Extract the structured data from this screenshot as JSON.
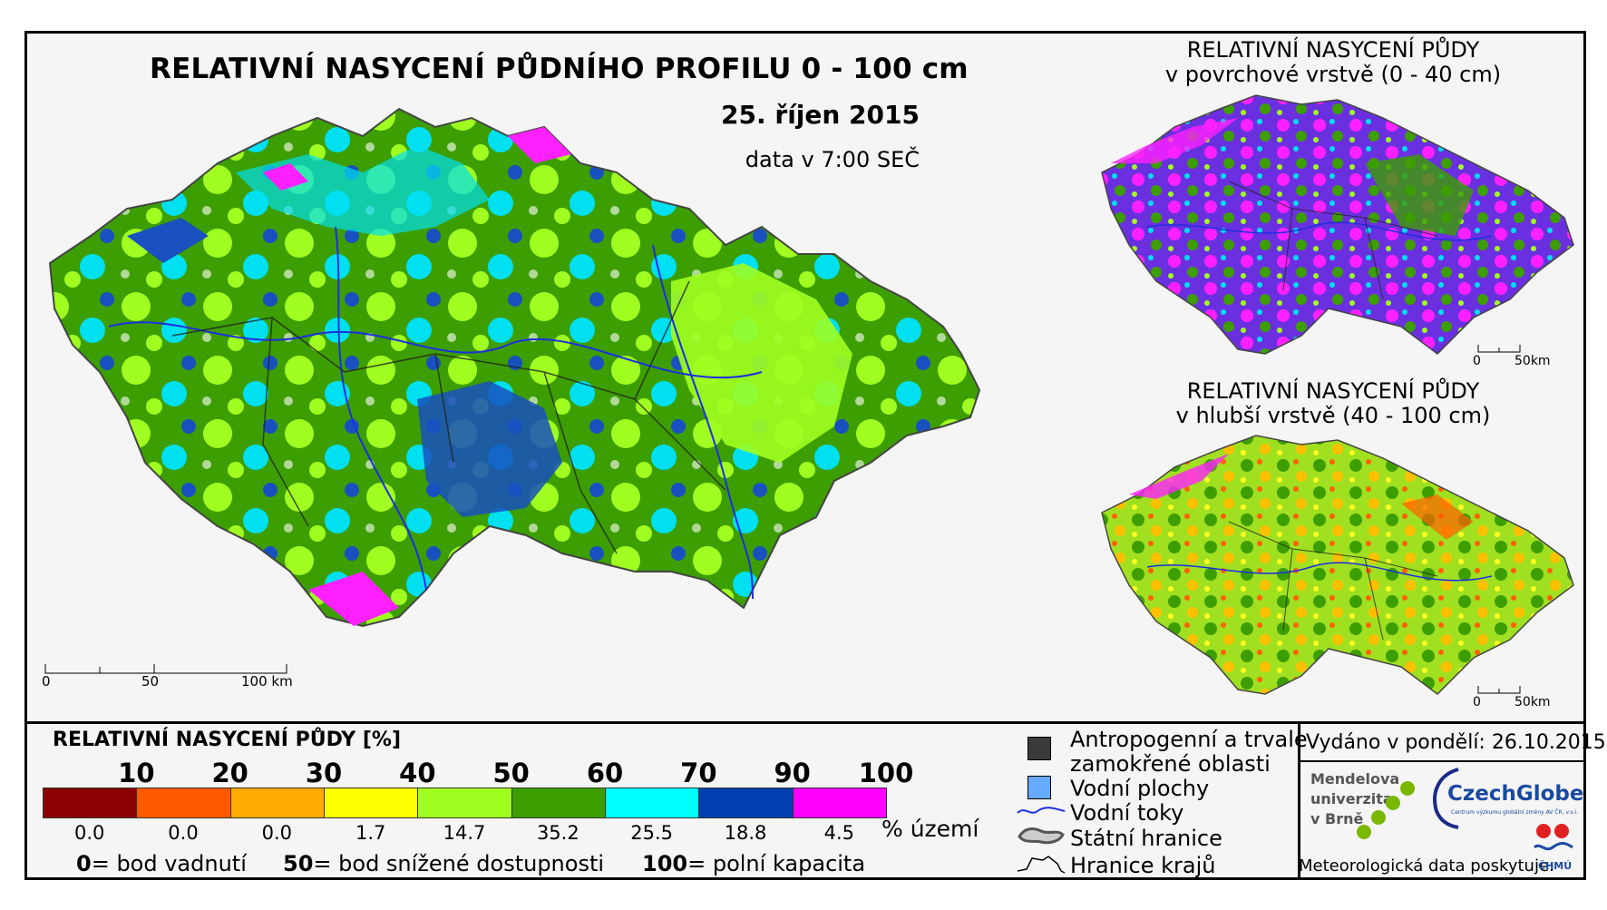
{
  "main_map": {
    "title": "RELATIVNÍ NASYCENÍ PŮDNÍHO PROFILU 0 - 100 cm",
    "date": "25. říjen 2015",
    "time": "data v 7:00 SEČ",
    "scale": [
      "0",
      "50",
      "100 km"
    ]
  },
  "top_inset": {
    "title_line1": "RELATIVNÍ NASYCENÍ PŮDY",
    "title_line2": "v povrchové vrstvě (0 - 40 cm)",
    "scale": [
      "0",
      "50km"
    ]
  },
  "bottom_inset": {
    "title_line1": "RELATIVNÍ NASYCENÍ PŮDY",
    "title_line2": "v hlubší vrstvě (40 - 100 cm)",
    "scale": [
      "0",
      "50km"
    ]
  },
  "legend": {
    "title": "RELATIVNÍ NASYCENÍ PŮDY [%]",
    "ticks": [
      "10",
      "20",
      "30",
      "40",
      "50",
      "60",
      "70",
      "90",
      "100"
    ],
    "percents": [
      "0.0",
      "0.0",
      "0.0",
      "1.7",
      "14.7",
      "35.2",
      "25.5",
      "18.8",
      "4.5"
    ],
    "percent_unit": "% území",
    "colors": [
      "#8b0000",
      "#ff5a00",
      "#ffaa00",
      "#ffff00",
      "#a0ff20",
      "#3c9e00",
      "#00ffff",
      "#0040b0",
      "#ff00ff"
    ],
    "definitions": [
      {
        "num": "0",
        "text": "= bod vadnutí"
      },
      {
        "num": "50",
        "text": "= bod snížené dostupnosti"
      },
      {
        "num": "100",
        "text": "= polní kapacita"
      }
    ]
  },
  "symbol_legend": {
    "items": [
      "Antropogenní a trvale",
      "zamokřené oblasti",
      "Vodní plochy",
      "Vodní toky",
      "Státní hranice",
      "Hranice krajů"
    ]
  },
  "issue": {
    "issued": "Vydáno v pondělí: 26.10.2015",
    "mendel": [
      "Mendelova",
      "univerzita",
      "v Brně"
    ],
    "czechglobe": "CzechGlobe",
    "czechglobe_sub": "Centrum výzkumu globální změny AV ČR, v.v.i.",
    "provider": "Meteorologická data poskytuje:",
    "chmu": "ČHMÚ"
  }
}
